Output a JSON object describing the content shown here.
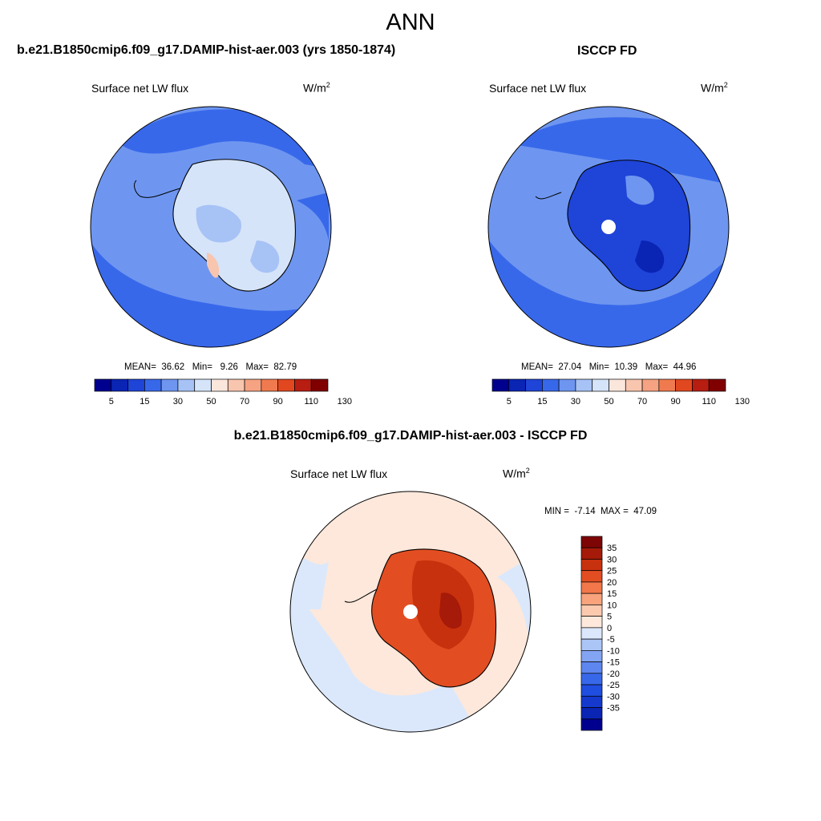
{
  "page": {
    "title": "ANN"
  },
  "colors": {
    "abs_scale": [
      "#00008f",
      "#0a24b4",
      "#1f44d8",
      "#3868ea",
      "#6e96f0",
      "#a7c2f5",
      "#d5e4f9",
      "#fbe6dc",
      "#f8c5ae",
      "#f5a382",
      "#f07a4f",
      "#e2481f",
      "#b81d12",
      "#800000"
    ],
    "diff_scale": [
      "#00008f",
      "#0a24b4",
      "#1439cc",
      "#1f4ee0",
      "#3868ea",
      "#5d86ef",
      "#83a4f2",
      "#abc6f6",
      "#dbe8fb",
      "#fde8db",
      "#fbc9ae",
      "#f8a37c",
      "#f2774b",
      "#e24e22",
      "#c8310e",
      "#a51a08",
      "#7d0505"
    ],
    "coastline": "#000000"
  },
  "chart_data": [
    {
      "type": "heatmap",
      "projection": "south polar stereographic",
      "title": "b.e21.B1850cmip6.f09_g17.DAMIP-hist-aer.003 (yrs 1850-1874)",
      "field": "Surface net LW flux",
      "units": "W/m",
      "units_exp": "2",
      "stats": {
        "mean_label": "MEAN=",
        "mean": "36.62",
        "min_label": "Min=",
        "min": "9.26",
        "max_label": "Max=",
        "max": "82.79"
      },
      "colorbar": {
        "orientation": "horizontal",
        "levels": [
          5,
          10,
          15,
          20,
          30,
          40,
          50,
          60,
          70,
          80,
          90,
          100,
          110,
          120,
          130
        ],
        "tick_labels": [
          "5",
          "15",
          "30",
          "50",
          "70",
          "90",
          "110",
          "130"
        ]
      }
    },
    {
      "type": "heatmap",
      "projection": "south polar stereographic",
      "title": "ISCCP FD",
      "field": "Surface net LW flux",
      "units": "W/m",
      "units_exp": "2",
      "stats": {
        "mean_label": "MEAN=",
        "mean": "27.04",
        "min_label": "Min=",
        "min": "10.39",
        "max_label": "Max=",
        "max": "44.96"
      },
      "colorbar": {
        "orientation": "horizontal",
        "levels": [
          5,
          10,
          15,
          20,
          30,
          40,
          50,
          60,
          70,
          80,
          90,
          100,
          110,
          120,
          130
        ],
        "tick_labels": [
          "5",
          "15",
          "30",
          "50",
          "70",
          "90",
          "110",
          "130"
        ]
      }
    },
    {
      "type": "heatmap",
      "projection": "south polar stereographic",
      "title": "b.e21.B1850cmip6.f09_g17.DAMIP-hist-aer.003 - ISCCP FD",
      "field": "Surface net LW flux",
      "units": "W/m",
      "units_exp": "2",
      "stats": {
        "min_label": "MIN =",
        "min": "-7.14",
        "max_label": "MAX =",
        "max": "47.09"
      },
      "colorbar": {
        "orientation": "vertical",
        "levels": [
          -35,
          -30,
          -25,
          -20,
          -15,
          -10,
          -5,
          0,
          5,
          10,
          15,
          20,
          25,
          30,
          35
        ],
        "tick_labels": [
          "35",
          "30",
          "25",
          "20",
          "15",
          "10",
          "5",
          "0",
          "-5",
          "-10",
          "-15",
          "-20",
          "-25",
          "-30",
          "-35"
        ]
      }
    }
  ]
}
